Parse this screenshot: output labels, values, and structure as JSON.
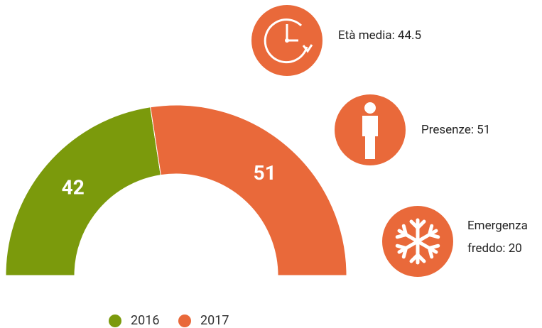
{
  "chart_data": {
    "type": "pie",
    "series": [
      {
        "name": "2016",
        "color": "#7b9a0c",
        "values": [
          42
        ]
      },
      {
        "name": "2017",
        "color": "#e9693a",
        "values": [
          51
        ]
      }
    ]
  },
  "info": [
    {
      "label": "Età media: 44.5"
    },
    {
      "label": "Presenze: 51"
    },
    {
      "label": "Emergenza freddo: 20"
    }
  ]
}
